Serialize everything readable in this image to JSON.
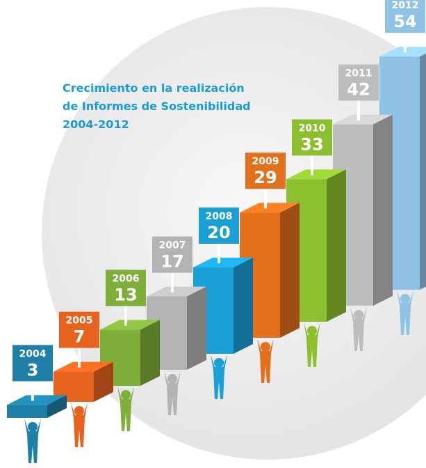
{
  "chart_data": {
    "type": "bar",
    "title": [
      "Crecimiento en la realización",
      "de Informes de Sostenibilidad",
      "2004-2012"
    ],
    "categories": [
      "2004",
      "2005",
      "2006",
      "2007",
      "2008",
      "2009",
      "2010",
      "2011",
      "2012"
    ],
    "values": [
      3,
      7,
      13,
      17,
      20,
      29,
      33,
      42,
      54
    ],
    "colors": [
      "#1f7fa6",
      "#e8621f",
      "#7fae3a",
      "#b3b3b3",
      "#1aa0d6",
      "#e2701d",
      "#8cbf2f",
      "#bdbdbd",
      "#8fc3e6"
    ]
  }
}
